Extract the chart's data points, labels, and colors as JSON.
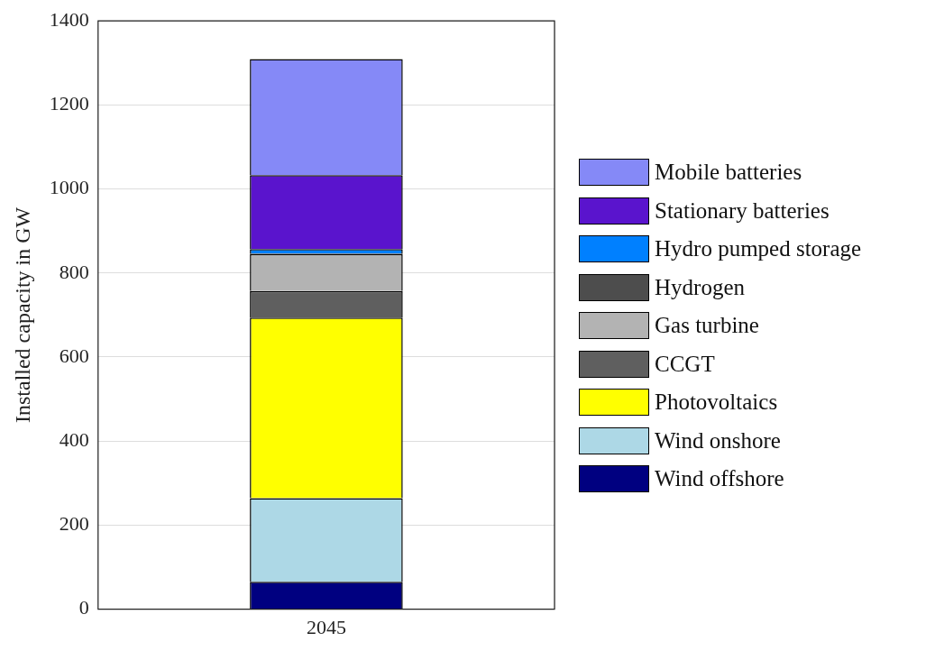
{
  "chart_data": {
    "type": "bar",
    "ylabel": "Installed capacity in GW",
    "categories": [
      "2045"
    ],
    "stacked": true,
    "ylim": [
      0,
      1400
    ],
    "yticks": [
      0,
      200,
      400,
      600,
      800,
      1000,
      1200,
      1400
    ],
    "grid": true,
    "legend": "right",
    "series": [
      {
        "name": "Wind offshore",
        "color": "#000080",
        "values": [
          65
        ]
      },
      {
        "name": "Wind onshore",
        "color": "#add8e6",
        "values": [
          199
        ]
      },
      {
        "name": "Photovoltaics",
        "color": "#ffff00",
        "values": [
          430
        ]
      },
      {
        "name": "CCGT",
        "color": "#5f5f5f",
        "values": [
          63
        ]
      },
      {
        "name": "Gas turbine",
        "color": "#b3b3b3",
        "values": [
          88
        ]
      },
      {
        "name": "Hydrogen",
        "color": "#4d4d4d",
        "values": [
          2
        ]
      },
      {
        "name": "Hydro pumped storage",
        "color": "#0080ff",
        "values": [
          10
        ]
      },
      {
        "name": "Stationary batteries",
        "color": "#5a14cd",
        "values": [
          176
        ]
      },
      {
        "name": "Mobile batteries",
        "color": "#8589f7",
        "values": [
          276
        ]
      }
    ]
  }
}
